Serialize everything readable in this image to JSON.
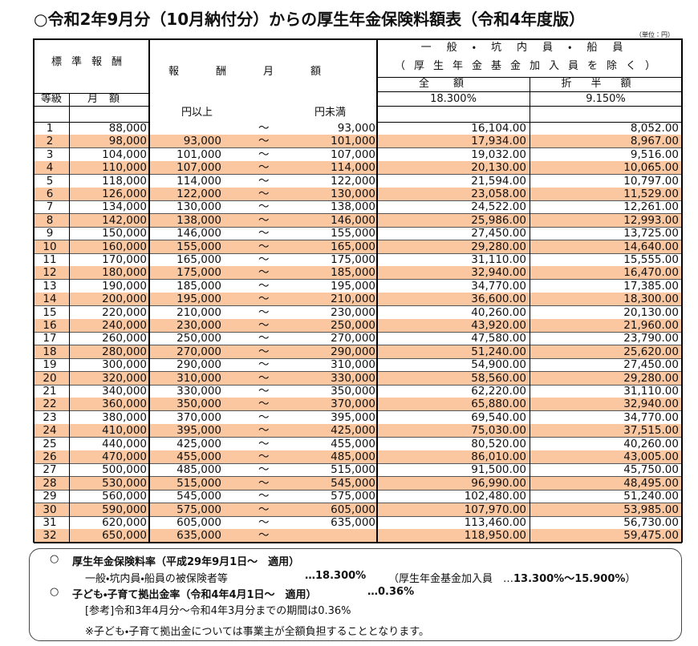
{
  "header": {
    "title": "○令和2年9月分（10月納付分）からの厚生年金保険料額表（令和4年度版）",
    "unit": "（単位：円）"
  },
  "table": {
    "headers": {
      "standard": "標準報酬",
      "range": "報酬月額",
      "group": "一般・坑内員・船員",
      "group_note": "（厚生年金基金加入員を除く）",
      "full": "全額",
      "half": "折半額",
      "grade": "等級",
      "monthly": "月額",
      "full_rate": "18.300%",
      "half_rate": "9.150%",
      "lower": "円以上",
      "upper": "円未満"
    },
    "separator": "～",
    "rows": [
      [
        "1",
        "88,000",
        null,
        "93,000",
        "16,104.00",
        "8,052.00"
      ],
      [
        "2",
        "98,000",
        "93,000",
        "101,000",
        "17,934.00",
        "8,967.00"
      ],
      [
        "3",
        "104,000",
        "101,000",
        "107,000",
        "19,032.00",
        "9,516.00"
      ],
      [
        "4",
        "110,000",
        "107,000",
        "114,000",
        "20,130.00",
        "10,065.00"
      ],
      [
        "5",
        "118,000",
        "114,000",
        "122,000",
        "21,594.00",
        "10,797.00"
      ],
      [
        "6",
        "126,000",
        "122,000",
        "130,000",
        "23,058.00",
        "11,529.00"
      ],
      [
        "7",
        "134,000",
        "130,000",
        "138,000",
        "24,522.00",
        "12,261.00"
      ],
      [
        "8",
        "142,000",
        "138,000",
        "146,000",
        "25,986.00",
        "12,993.00"
      ],
      [
        "9",
        "150,000",
        "146,000",
        "155,000",
        "27,450.00",
        "13,725.00"
      ],
      [
        "10",
        "160,000",
        "155,000",
        "165,000",
        "29,280.00",
        "14,640.00"
      ],
      [
        "11",
        "170,000",
        "165,000",
        "175,000",
        "31,110.00",
        "15,555.00"
      ],
      [
        "12",
        "180,000",
        "175,000",
        "185,000",
        "32,940.00",
        "16,470.00"
      ],
      [
        "13",
        "190,000",
        "185,000",
        "195,000",
        "34,770.00",
        "17,385.00"
      ],
      [
        "14",
        "200,000",
        "195,000",
        "210,000",
        "36,600.00",
        "18,300.00"
      ],
      [
        "15",
        "220,000",
        "210,000",
        "230,000",
        "40,260.00",
        "20,130.00"
      ],
      [
        "16",
        "240,000",
        "230,000",
        "250,000",
        "43,920.00",
        "21,960.00"
      ],
      [
        "17",
        "260,000",
        "250,000",
        "270,000",
        "47,580.00",
        "23,790.00"
      ],
      [
        "18",
        "280,000",
        "270,000",
        "290,000",
        "51,240.00",
        "25,620.00"
      ],
      [
        "19",
        "300,000",
        "290,000",
        "310,000",
        "54,900.00",
        "27,450.00"
      ],
      [
        "20",
        "320,000",
        "310,000",
        "330,000",
        "58,560.00",
        "29,280.00"
      ],
      [
        "21",
        "340,000",
        "330,000",
        "350,000",
        "62,220.00",
        "31,110.00"
      ],
      [
        "22",
        "360,000",
        "350,000",
        "370,000",
        "65,880.00",
        "32,940.00"
      ],
      [
        "23",
        "380,000",
        "370,000",
        "395,000",
        "69,540.00",
        "34,770.00"
      ],
      [
        "24",
        "410,000",
        "395,000",
        "425,000",
        "75,030.00",
        "37,515.00"
      ],
      [
        "25",
        "440,000",
        "425,000",
        "455,000",
        "80,520.00",
        "40,260.00"
      ],
      [
        "26",
        "470,000",
        "455,000",
        "485,000",
        "86,010.00",
        "43,005.00"
      ],
      [
        "27",
        "500,000",
        "485,000",
        "515,000",
        "91,500.00",
        "45,750.00"
      ],
      [
        "28",
        "530,000",
        "515,000",
        "545,000",
        "96,990.00",
        "48,495.00"
      ],
      [
        "29",
        "560,000",
        "545,000",
        "575,000",
        "102,480.00",
        "51,240.00"
      ],
      [
        "30",
        "590,000",
        "575,000",
        "605,000",
        "107,970.00",
        "53,985.00"
      ],
      [
        "31",
        "620,000",
        "605,000",
        "635,000",
        "113,460.00",
        "56,730.00"
      ],
      [
        "32",
        "650,000",
        "635,000",
        null,
        "118,950.00",
        "59,475.00"
      ]
    ]
  },
  "notes": {
    "marker": "○",
    "items": [
      {
        "title": "厚生年金保険料率（平成29年9月1日～　適用）",
        "label": "一般・坑内員・船員の被保険者等",
        "rate": "…18.300%",
        "fund_prefix": "（厚生年金基金加入員　…",
        "fund_rate": "13.300%～15.900%",
        "fund_suffix": "）"
      },
      {
        "title": "子ども・子育て拠出金率（令和4年4月1日～　適用）",
        "rate": "…0.36%",
        "reference": "[参考]令和3年4月分～令和4年3月分までの期間は0.36%"
      }
    ],
    "remark": "※子ども・子育て拠出金については事業主が全額負担することとなります。"
  }
}
